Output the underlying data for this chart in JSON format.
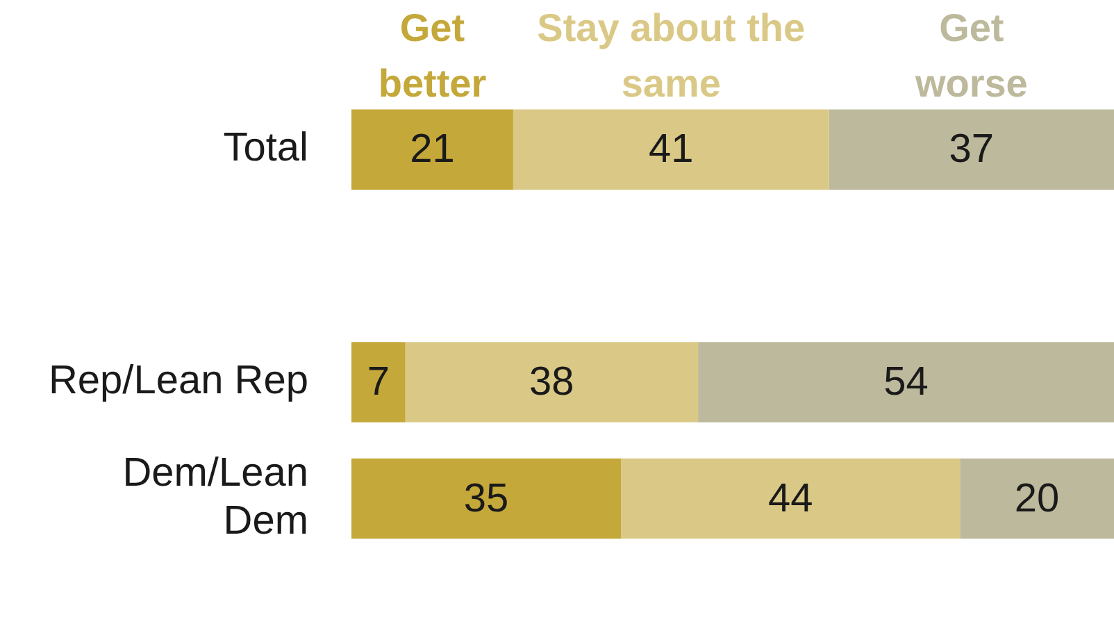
{
  "chart_data": {
    "type": "bar",
    "orientation": "horizontal",
    "stacked": true,
    "categories": [
      "Total",
      null,
      "Rep/Lean Rep",
      "Dem/Lean Dem"
    ],
    "series": [
      {
        "name": "Get better",
        "color": "#c4a83a",
        "values": [
          21,
          null,
          7,
          35
        ]
      },
      {
        "name": "Stay about the same",
        "color": "#dac986",
        "values": [
          41,
          null,
          38,
          44
        ]
      },
      {
        "name": "Get worse",
        "color": "#bdb99c",
        "values": [
          37,
          null,
          54,
          20
        ]
      }
    ],
    "xlim": [
      0,
      99
    ],
    "data_labels": true,
    "legend": "top",
    "tick_labels": "y"
  }
}
